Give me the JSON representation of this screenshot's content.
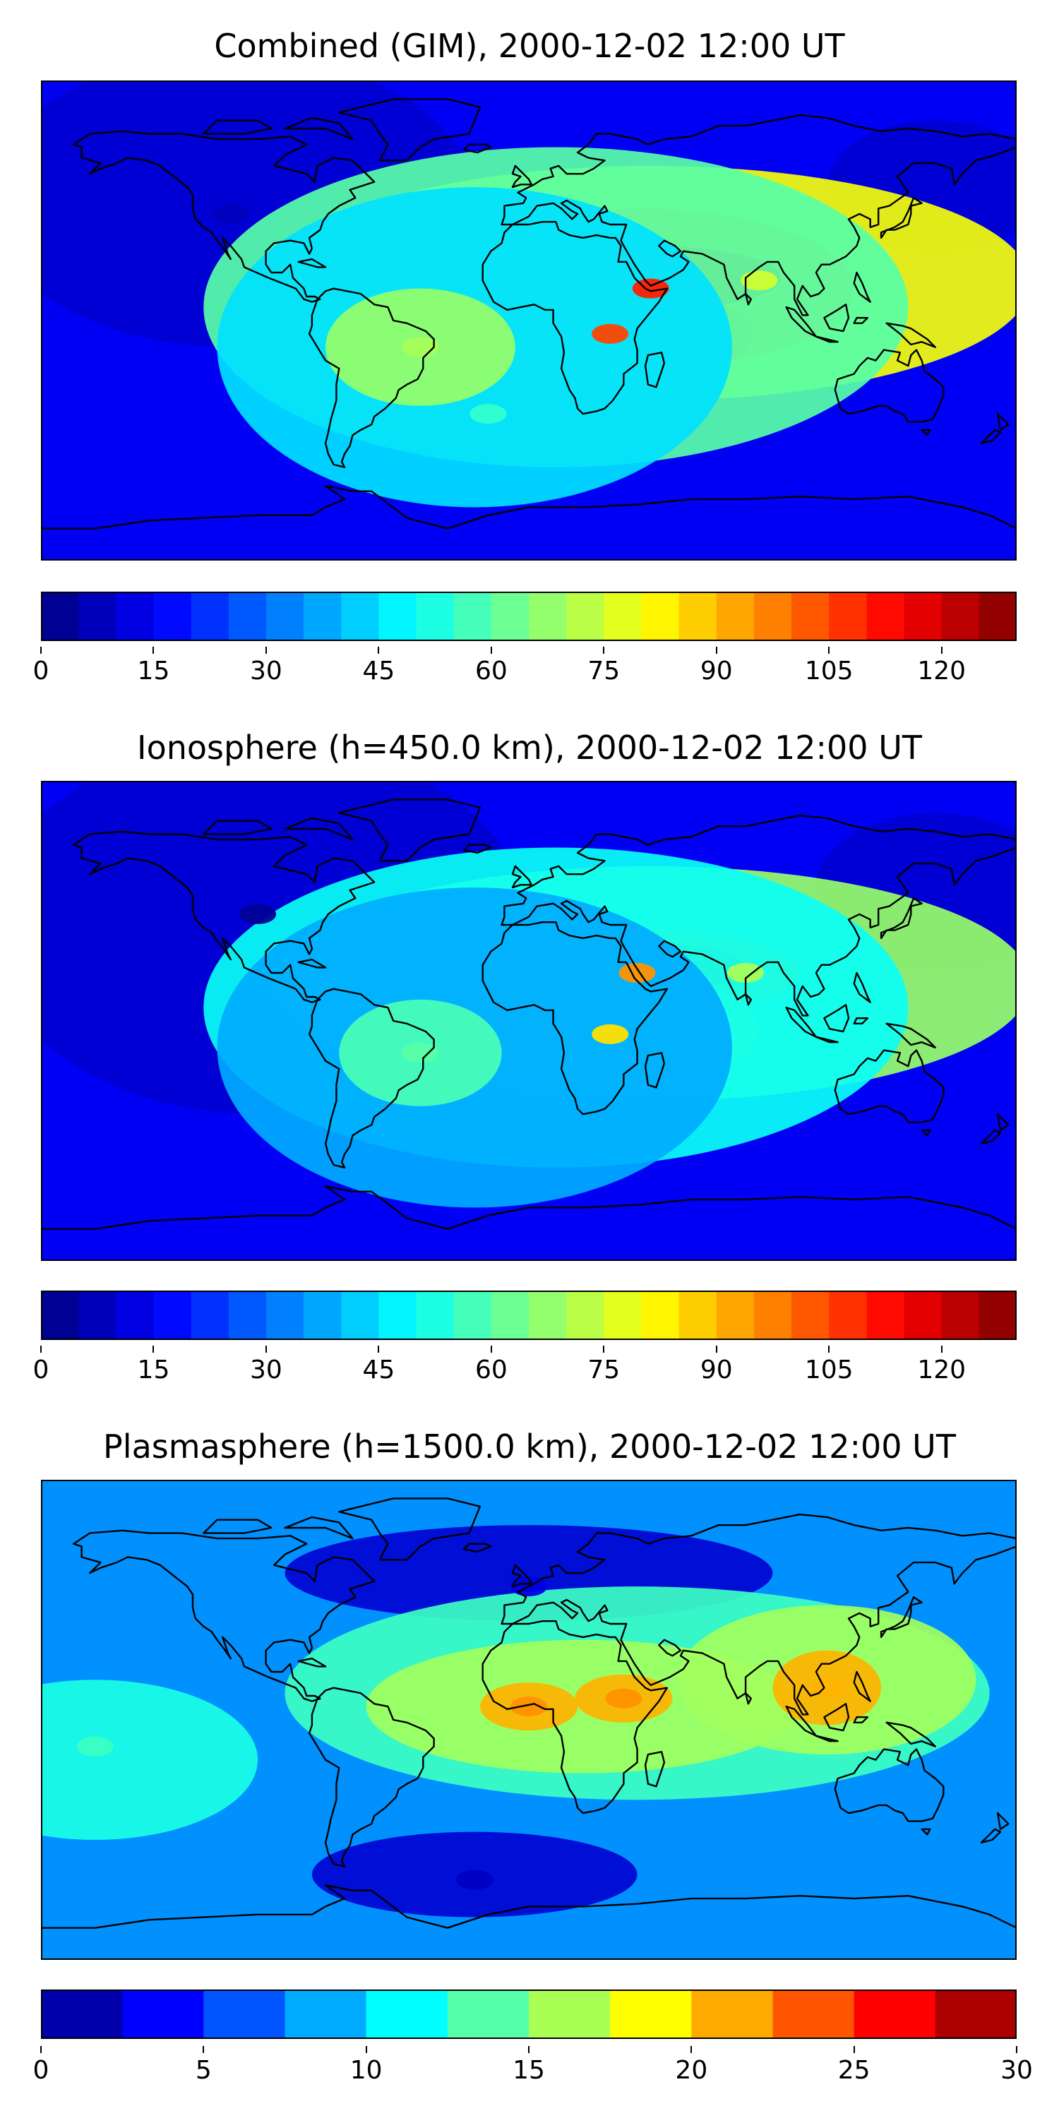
{
  "chart_data": [
    {
      "type": "heatmap",
      "title": "Combined (GIM), 2000-12-02 12:00 UT",
      "colorbar": {
        "min": 0,
        "max": 130,
        "step": 5,
        "tick_labels": [
          "0",
          "15",
          "30",
          "45",
          "60",
          "75",
          "90",
          "105",
          "120"
        ]
      },
      "map": "world coastlines, equirectangular",
      "background_level": 15,
      "features": [
        {
          "region": "North Africa / Arabia crest",
          "lon": 45,
          "lat": 12,
          "value": 110
        },
        {
          "region": "Central Africa crest",
          "lon": 30,
          "lat": -5,
          "value": 105
        },
        {
          "region": "South America east coast",
          "lon": -40,
          "lat": -10,
          "value": 70
        },
        {
          "region": "South Asia",
          "lon": 85,
          "lat": 15,
          "value": 75
        },
        {
          "region": "South Atlantic",
          "lon": -15,
          "lat": -35,
          "value": 55
        },
        {
          "region": "Northern Pacific / North America",
          "lon": -110,
          "lat": 40,
          "value": 8
        }
      ]
    },
    {
      "type": "heatmap",
      "title": "Ionosphere  (h=450.0 km), 2000-12-02 12:00 UT",
      "colorbar": {
        "min": 0,
        "max": 130,
        "step": 5,
        "tick_labels": [
          "0",
          "15",
          "30",
          "45",
          "60",
          "75",
          "90",
          "105",
          "120"
        ]
      },
      "map": "world coastlines, equirectangular",
      "background_level": 15,
      "features": [
        {
          "region": "Arabia crest",
          "lon": 40,
          "lat": 18,
          "value": 95
        },
        {
          "region": "Central Africa",
          "lon": 30,
          "lat": -5,
          "value": 85
        },
        {
          "region": "South Asia",
          "lon": 80,
          "lat": 18,
          "value": 70
        },
        {
          "region": "South America east coast",
          "lon": -40,
          "lat": -12,
          "value": 60
        },
        {
          "region": "Northern Pacific / North America",
          "lon": -100,
          "lat": 40,
          "value": 3
        }
      ]
    },
    {
      "type": "heatmap",
      "title": "Plasmasphere (h=1500.0 km), 2000-12-02 12:00 UT",
      "colorbar": {
        "min": 0,
        "max": 30,
        "step": 2.5,
        "tick_labels": [
          "0",
          "5",
          "10",
          "15",
          "20",
          "25",
          "30"
        ]
      },
      "map": "world coastlines, equirectangular",
      "background_level": 8,
      "features": [
        {
          "region": "West Africa",
          "lon": 0,
          "lat": 5,
          "value": 22
        },
        {
          "region": "East Africa",
          "lon": 35,
          "lat": 8,
          "value": 22
        },
        {
          "region": "Southeast Asia",
          "lon": 110,
          "lat": 12,
          "value": 21
        },
        {
          "region": "East Pacific",
          "lon": -160,
          "lat": -10,
          "value": 13
        },
        {
          "region": "North Atlantic low",
          "lon": 0,
          "lat": 50,
          "value": 3
        },
        {
          "region": "South Atlantic low",
          "lon": -20,
          "lat": -60,
          "value": 2
        }
      ]
    }
  ]
}
